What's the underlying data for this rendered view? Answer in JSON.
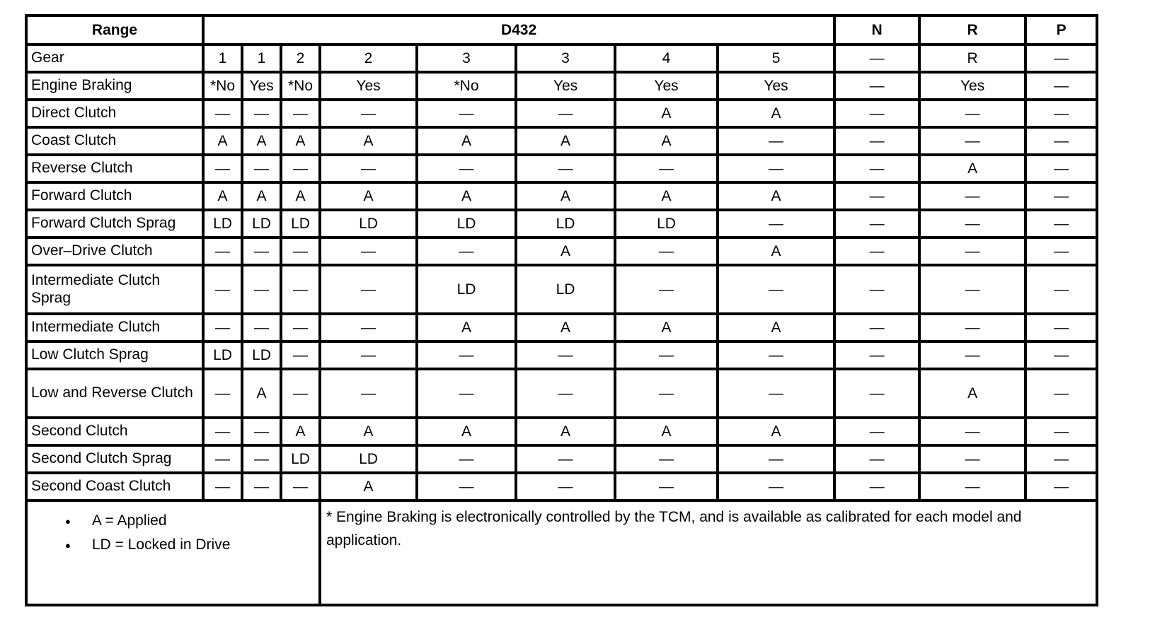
{
  "table": {
    "header": {
      "range": "Range",
      "d432": "D432",
      "n": "N",
      "r": "R",
      "p": "P"
    },
    "rows": [
      {
        "label": "Gear",
        "values": [
          "1",
          "1",
          "2",
          "2",
          "3",
          "3",
          "4",
          "5",
          "—",
          "R",
          "—"
        ]
      },
      {
        "label": "Engine Braking",
        "values": [
          "*No",
          "Yes",
          "*No",
          "Yes",
          "*No",
          "Yes",
          "Yes",
          "Yes",
          "—",
          "Yes",
          "—"
        ]
      },
      {
        "label": "Direct Clutch",
        "values": [
          "—",
          "—",
          "—",
          "—",
          "—",
          "—",
          "A",
          "A",
          "—",
          "—",
          "—"
        ]
      },
      {
        "label": "Coast Clutch",
        "values": [
          "A",
          "A",
          "A",
          "A",
          "A",
          "A",
          "A",
          "—",
          "—",
          "—",
          "—"
        ]
      },
      {
        "label": "Reverse Clutch",
        "values": [
          "—",
          "—",
          "—",
          "—",
          "—",
          "—",
          "—",
          "—",
          "—",
          "A",
          "—"
        ]
      },
      {
        "label": "Forward Clutch",
        "values": [
          "A",
          "A",
          "A",
          "A",
          "A",
          "A",
          "A",
          "A",
          "—",
          "—",
          "—"
        ]
      },
      {
        "label": "Forward Clutch Sprag",
        "values": [
          "LD",
          "LD",
          "LD",
          "LD",
          "LD",
          "LD",
          "LD",
          "—",
          "—",
          "—",
          "—"
        ]
      },
      {
        "label": "Over–Drive Clutch",
        "values": [
          "—",
          "—",
          "—",
          "—",
          "—",
          "A",
          "—",
          "A",
          "—",
          "—",
          "—"
        ]
      },
      {
        "label": "Intermediate Clutch Sprag",
        "tall": true,
        "values": [
          "—",
          "—",
          "—",
          "—",
          "LD",
          "LD",
          "—",
          "—",
          "—",
          "—",
          "—"
        ]
      },
      {
        "label": "Intermediate Clutch",
        "values": [
          "—",
          "—",
          "—",
          "—",
          "A",
          "A",
          "A",
          "A",
          "—",
          "—",
          "—"
        ]
      },
      {
        "label": "Low Clutch Sprag",
        "values": [
          "LD",
          "LD",
          "—",
          "—",
          "—",
          "—",
          "—",
          "—",
          "—",
          "—",
          "—"
        ]
      },
      {
        "label": "Low and Reverse Clutch",
        "tall": true,
        "values": [
          "—",
          "A",
          "—",
          "—",
          "—",
          "—",
          "—",
          "—",
          "—",
          "A",
          "—"
        ]
      },
      {
        "label": "Second Clutch",
        "values": [
          "—",
          "—",
          "A",
          "A",
          "A",
          "A",
          "A",
          "A",
          "—",
          "—",
          "—"
        ]
      },
      {
        "label": "Second Clutch Sprag",
        "values": [
          "—",
          "—",
          "LD",
          "LD",
          "—",
          "—",
          "—",
          "—",
          "—",
          "—",
          "—"
        ]
      },
      {
        "label": "Second Coast Clutch",
        "values": [
          "—",
          "—",
          "—",
          "A",
          "—",
          "—",
          "—",
          "—",
          "—",
          "—",
          "—"
        ]
      }
    ],
    "legend": {
      "bullet": "●",
      "items": [
        "A = Applied",
        "LD = Locked in Drive"
      ]
    },
    "note": "* Engine Braking is electronically controlled by the TCM, and is available as calibrated for each model and application."
  }
}
